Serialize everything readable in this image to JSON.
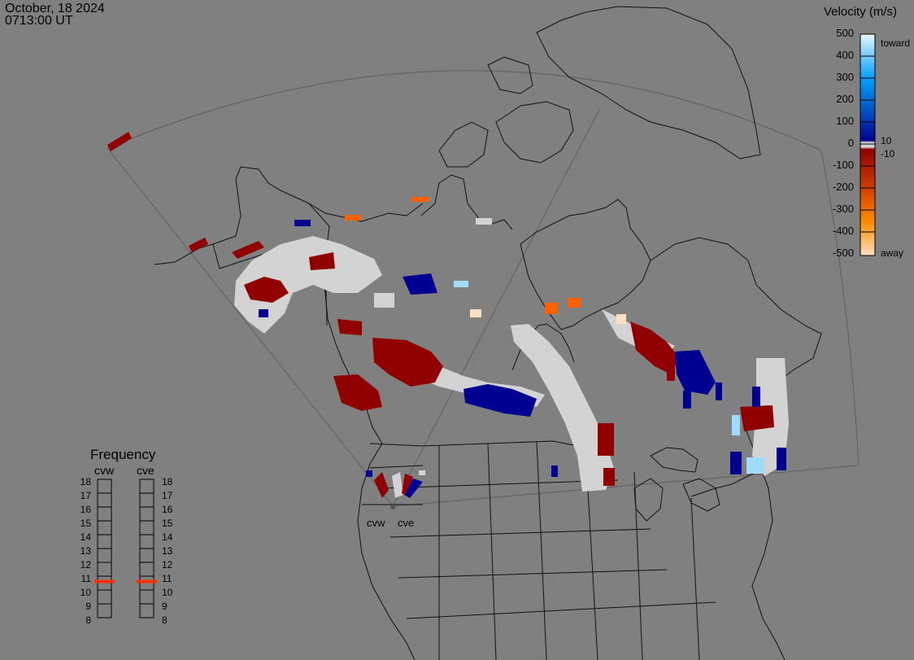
{
  "header": {
    "date": "October, 18 2024",
    "time": "0713:00 UT"
  },
  "velocity_scale": {
    "title": "Velocity (m/s)",
    "ticks": [
      "500",
      "400",
      "300",
      "200",
      "100",
      "0",
      "-100",
      "-200",
      "-300",
      "-400",
      "-500"
    ],
    "inner_ticks": [
      "10",
      "-10"
    ],
    "toward_label": "toward",
    "away_label": "away",
    "colors": {
      "toward_max": "#e8f6ff",
      "toward_mid": "#00a0ff",
      "toward_low": "#000090",
      "away_low": "#900000",
      "away_mid": "#ff6000",
      "away_max": "#ffe0c0",
      "ground_scatter": "#d3d3d3"
    }
  },
  "frequency_panel": {
    "title": "Frequency",
    "radars": [
      "cvw",
      "cve"
    ],
    "levels": [
      "18",
      "17",
      "16",
      "15",
      "14",
      "13",
      "12",
      "11",
      "10",
      "9",
      "8"
    ],
    "selected_mhz": {
      "cvw": 11,
      "cve": 11
    },
    "marker_color": "#ff3000"
  },
  "radar_sites": [
    {
      "name": "cvw"
    },
    {
      "name": "cve"
    }
  ]
}
